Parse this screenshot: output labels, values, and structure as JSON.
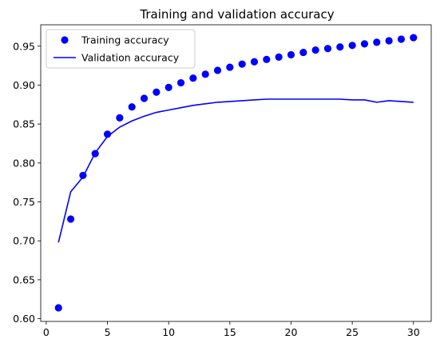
{
  "chart_data": {
    "type": "line",
    "title": "Training and validation accuracy",
    "xlabel": "",
    "ylabel": "",
    "xlim": [
      -0.45,
      31.45
    ],
    "ylim": [
      0.5965,
      0.9775
    ],
    "x_ticks": [
      0,
      5,
      10,
      15,
      20,
      25,
      30
    ],
    "y_ticks": [
      0.6,
      0.65,
      0.7,
      0.75,
      0.8,
      0.85,
      0.9,
      0.95
    ],
    "y_tick_labels": [
      "0.60",
      "0.65",
      "0.70",
      "0.75",
      "0.80",
      "0.85",
      "0.90",
      "0.95"
    ],
    "x_tick_labels": [
      "0",
      "5",
      "10",
      "15",
      "20",
      "25",
      "30"
    ],
    "grid": false,
    "legend_position": "upper-left",
    "x": [
      1,
      2,
      3,
      4,
      5,
      6,
      7,
      8,
      9,
      10,
      11,
      12,
      13,
      14,
      15,
      16,
      17,
      18,
      19,
      20,
      21,
      22,
      23,
      24,
      25,
      26,
      27,
      28,
      29,
      30
    ],
    "series": [
      {
        "name": "Training accuracy",
        "style": "dots",
        "color": "#0000ff",
        "values": [
          0.614,
          0.728,
          0.784,
          0.812,
          0.837,
          0.858,
          0.872,
          0.883,
          0.891,
          0.897,
          0.903,
          0.909,
          0.914,
          0.919,
          0.923,
          0.927,
          0.93,
          0.933,
          0.936,
          0.939,
          0.942,
          0.945,
          0.947,
          0.949,
          0.951,
          0.953,
          0.955,
          0.957,
          0.959,
          0.961
        ]
      },
      {
        "name": "Validation accuracy",
        "style": "line",
        "color": "#0000ff",
        "values": [
          0.698,
          0.763,
          0.782,
          0.813,
          0.834,
          0.846,
          0.854,
          0.86,
          0.865,
          0.868,
          0.871,
          0.874,
          0.876,
          0.878,
          0.879,
          0.88,
          0.881,
          0.882,
          0.882,
          0.882,
          0.882,
          0.882,
          0.882,
          0.882,
          0.881,
          0.881,
          0.878,
          0.88,
          0.879,
          0.878
        ]
      }
    ]
  }
}
